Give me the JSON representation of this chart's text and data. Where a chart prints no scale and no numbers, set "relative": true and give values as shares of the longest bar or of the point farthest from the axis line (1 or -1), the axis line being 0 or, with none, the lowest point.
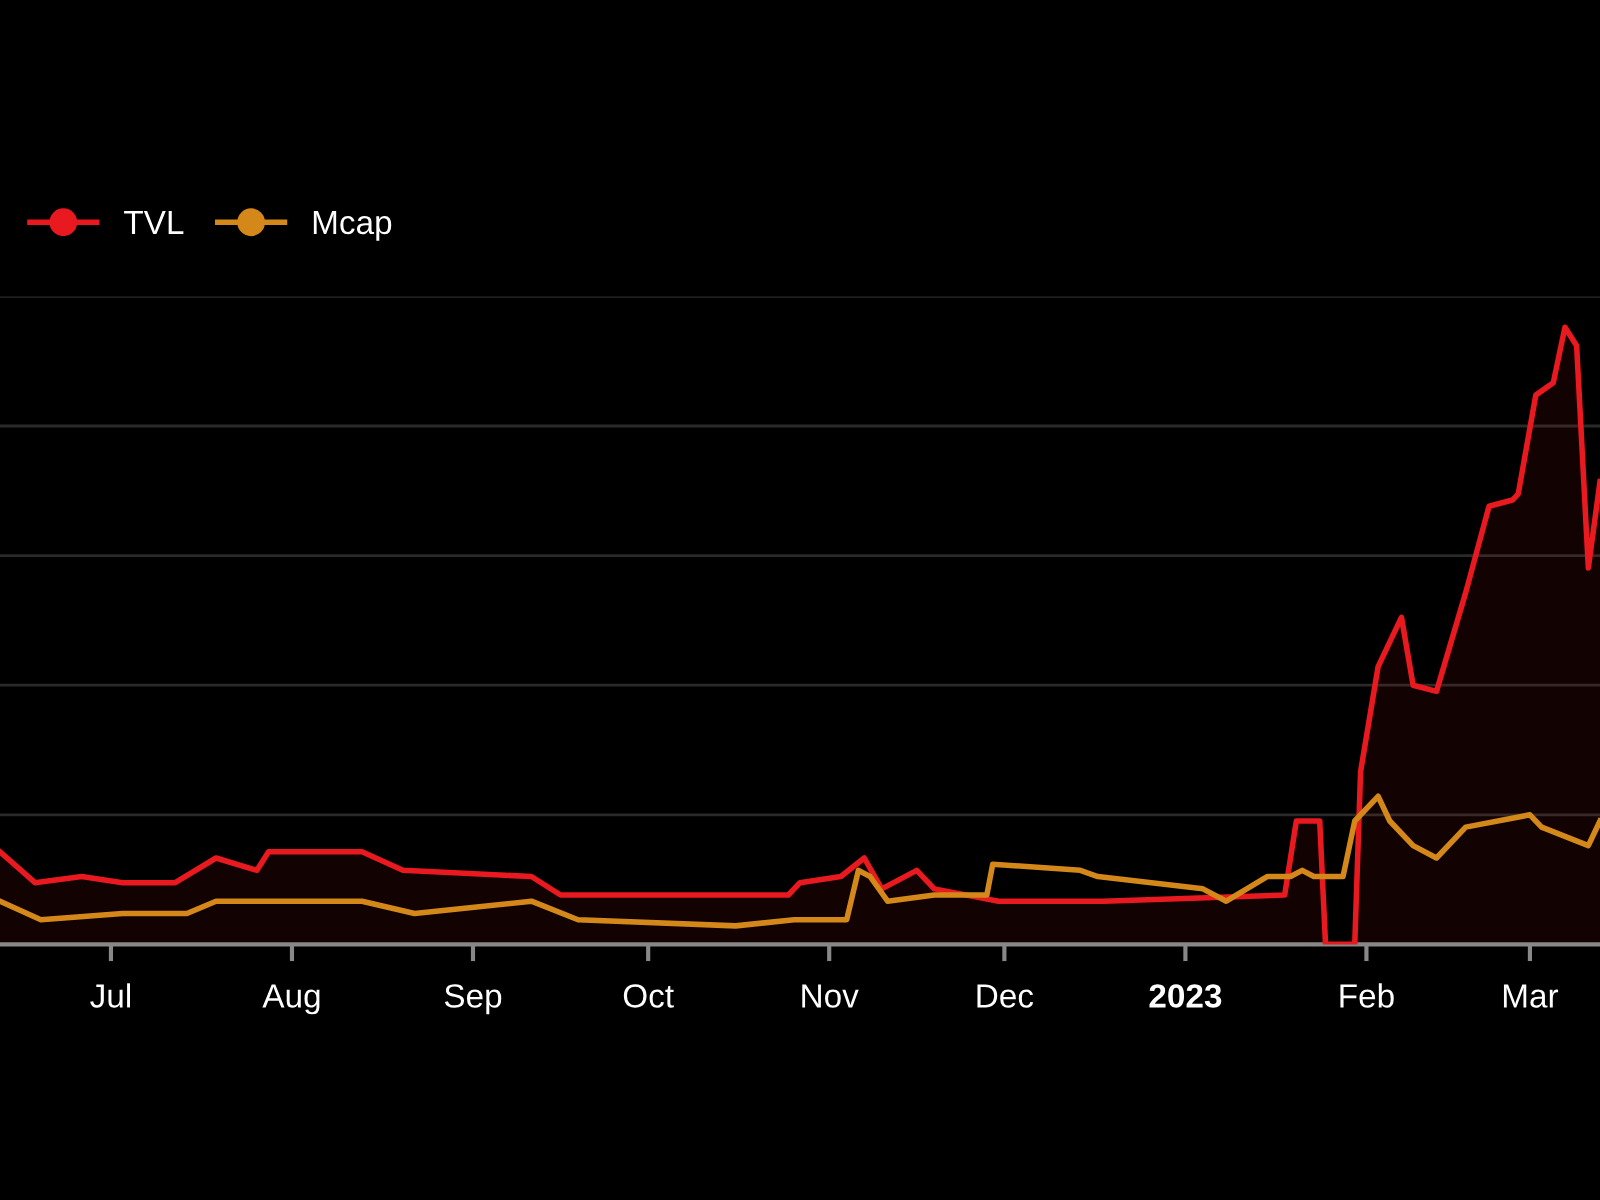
{
  "chart_data": {
    "type": "line",
    "relative": true,
    "grid": "y",
    "legend": "top left",
    "xlim": [
      "2022-06-12",
      "2023-03-13"
    ],
    "xticks": [
      {
        "value": "2022-07-01",
        "label": "Jul"
      },
      {
        "value": "2022-08-01",
        "label": "Aug"
      },
      {
        "value": "2022-09-01",
        "label": "Sep"
      },
      {
        "value": "2022-10-01",
        "label": "Oct"
      },
      {
        "value": "2022-11-01",
        "label": "Nov"
      },
      {
        "value": "2022-12-01",
        "label": "Dec"
      },
      {
        "value": "2023-01-01",
        "label": "2023"
      },
      {
        "value": "2023-02-01",
        "label": "Feb"
      },
      {
        "value": "2023-03-01",
        "label": "Mar"
      }
    ],
    "series": [
      {
        "name": "TVL",
        "type": "area",
        "color": "#e8191f",
        "x": [
          "2022-06-12",
          "2022-06-18",
          "2022-06-26",
          "2022-07-03",
          "2022-07-12",
          "2022-07-19",
          "2022-07-26",
          "2022-07-28",
          "2022-08-13",
          "2022-08-20",
          "2022-09-11",
          "2022-09-16",
          "2022-10-05",
          "2022-10-25",
          "2022-10-27",
          "2022-11-03",
          "2022-11-07",
          "2022-11-10",
          "2022-11-16",
          "2022-11-19",
          "2022-11-30",
          "2022-12-18",
          "2023-01-18",
          "2023-01-20",
          "2023-01-22",
          "2023-01-24",
          "2023-01-25",
          "2023-01-30",
          "2023-01-31",
          "2023-02-03",
          "2023-02-07",
          "2023-02-09",
          "2023-02-13",
          "2023-02-18",
          "2023-02-22",
          "2023-02-26",
          "2023-02-27",
          "2023-03-02",
          "2023-03-05",
          "2023-03-07",
          "2023-03-09",
          "2023-03-11",
          "2023-03-13"
        ],
        "values": [
          0.15,
          0.1,
          0.11,
          0.1,
          0.1,
          0.14,
          0.12,
          0.15,
          0.15,
          0.12,
          0.11,
          0.08,
          0.08,
          0.08,
          0.1,
          0.11,
          0.14,
          0.09,
          0.12,
          0.09,
          0.07,
          0.07,
          0.08,
          0.2,
          0.2,
          0.2,
          0,
          0,
          0.28,
          0.45,
          0.53,
          0.42,
          0.41,
          0.57,
          0.71,
          0.72,
          0.73,
          0.89,
          0.91,
          1,
          0.97,
          0.61,
          0.75
        ]
      },
      {
        "name": "Mcap",
        "color": "#d4881a",
        "x": [
          "2022-06-12",
          "2022-06-19",
          "2022-07-03",
          "2022-07-14",
          "2022-07-19",
          "2022-07-28",
          "2022-08-13",
          "2022-08-22",
          "2022-09-11",
          "2022-09-19",
          "2022-10-16",
          "2022-10-26",
          "2022-10-27",
          "2022-11-04",
          "2022-11-06",
          "2022-11-08",
          "2022-11-11",
          "2022-11-19",
          "2022-11-28",
          "2022-11-29",
          "2022-12-14",
          "2022-12-17",
          "2023-01-04",
          "2023-01-08",
          "2023-01-15",
          "2023-01-19",
          "2023-01-21",
          "2023-01-23",
          "2023-01-28",
          "2023-01-30",
          "2023-02-03",
          "2023-02-05",
          "2023-02-09",
          "2023-02-13",
          "2023-02-18",
          "2023-03-01",
          "2023-03-03",
          "2023-03-11",
          "2023-03-13"
        ],
        "values": [
          0.07,
          0.04,
          0.05,
          0.05,
          0.07,
          0.07,
          0.07,
          0.05,
          0.07,
          0.04,
          0.03,
          0.04,
          0.04,
          0.04,
          0.12,
          0.11,
          0.07,
          0.08,
          0.08,
          0.13,
          0.12,
          0.11,
          0.09,
          0.07,
          0.11,
          0.11,
          0.12,
          0.11,
          0.11,
          0.2,
          0.24,
          0.2,
          0.16,
          0.14,
          0.19,
          0.21,
          0.19,
          0.16,
          0.2
        ]
      }
    ]
  }
}
